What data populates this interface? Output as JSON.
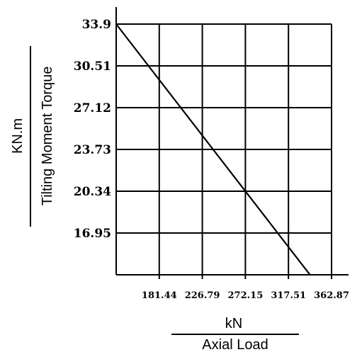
{
  "chart_data": {
    "type": "line",
    "xlabel_unit": "kN",
    "xlabel": "Axial Load",
    "ylabel_unit": "KN.m",
    "ylabel": "Tilting Moment Torque",
    "x_ticks": [
      "181.44",
      "226.79",
      "272.15",
      "317.51",
      "362.87"
    ],
    "y_ticks": [
      "33.9",
      "30.51",
      "27.12",
      "23.73",
      "20.34",
      "16.95"
    ],
    "xlim": [
      136.08,
      362.87
    ],
    "ylim": [
      13.56,
      33.9
    ],
    "grid": true,
    "series": [
      {
        "x": [
          136.08,
          340.19
        ],
        "y": [
          33.9,
          13.56
        ]
      }
    ]
  }
}
